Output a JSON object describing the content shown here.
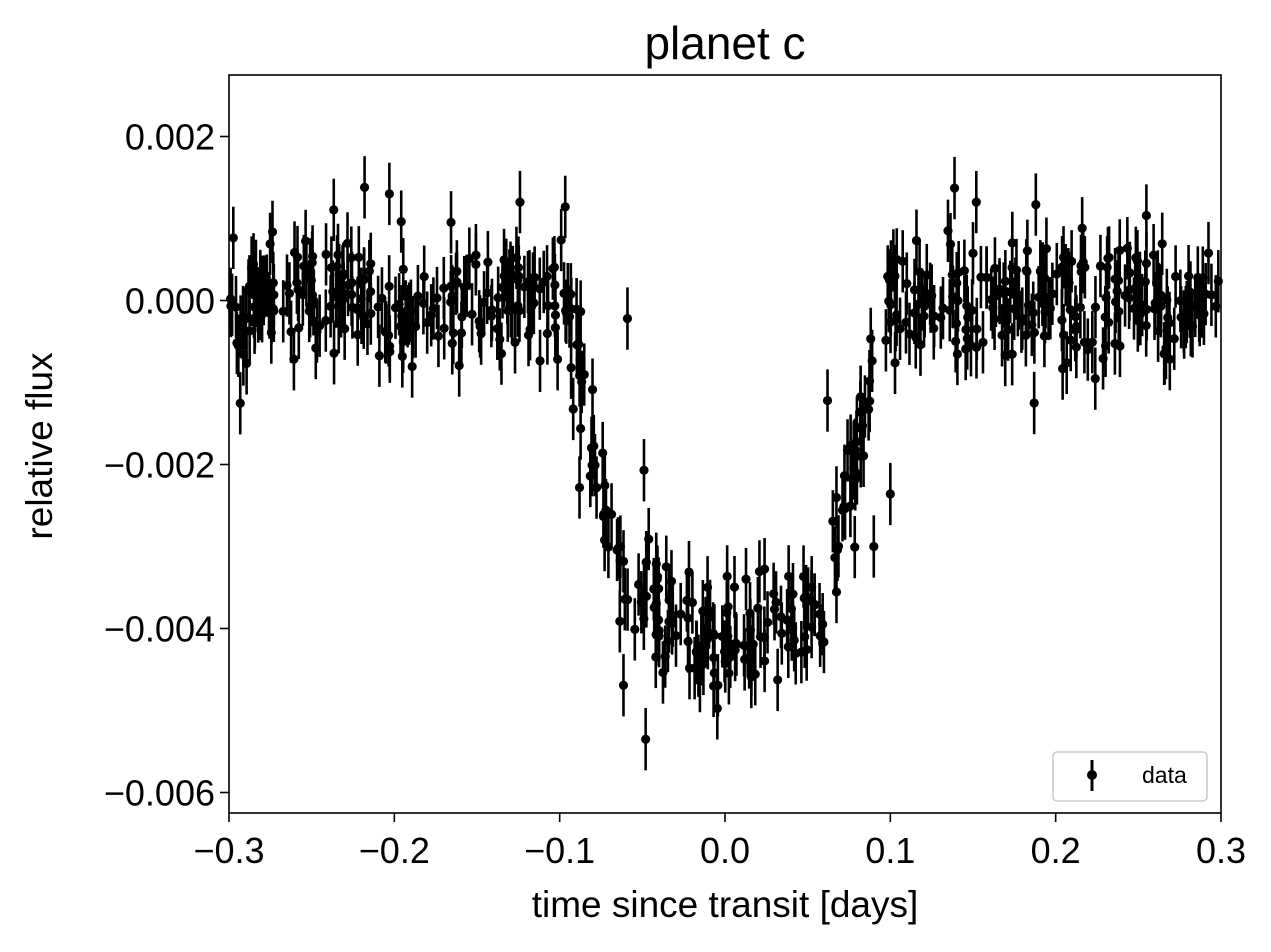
{
  "chart_data": {
    "type": "scatter",
    "title": "planet c",
    "xlabel": "time since transit [days]",
    "ylabel": "relative flux",
    "xlim": [
      -0.3,
      0.3
    ],
    "ylim": [
      -0.00625,
      0.00275
    ],
    "x_ticks": [
      -0.3,
      -0.2,
      -0.1,
      0.0,
      0.1,
      0.2,
      0.3
    ],
    "x_tick_labels": [
      "−0.3",
      "−0.2",
      "−0.1",
      "0.0",
      "0.1",
      "0.2",
      "0.3"
    ],
    "y_ticks": [
      0.002,
      0.0,
      -0.002,
      -0.004,
      -0.006
    ],
    "y_tick_labels": [
      "0.002",
      "0.000",
      "−0.002",
      "−0.004",
      "−0.006"
    ],
    "grid": false,
    "legend": {
      "placement": "lower-right",
      "entries": [
        "data"
      ]
    },
    "marker_color": "#000000",
    "model": {
      "baseline": 0.0,
      "depth": -0.0041,
      "ingress_start": 0.097,
      "flat_start": 0.06,
      "noise_sigma": 0.00048,
      "error_bar": 0.00038
    },
    "series": [
      {
        "name": "data",
        "n_points": 650,
        "highlighted_points": [
          [
            -0.218,
            0.00138
          ],
          [
            -0.203,
            0.0013
          ],
          [
            -0.124,
            0.0012
          ],
          [
            -0.049,
            -0.00207
          ],
          [
            -0.048,
            -0.00535
          ],
          [
            -0.088,
            -0.00228
          ],
          [
            0.062,
            -0.00122
          ],
          [
            0.076,
            -0.00177
          ],
          [
            0.1,
            -0.00236
          ],
          [
            0.09,
            -0.003
          ],
          [
            0.152,
            0.0012
          ],
          [
            0.188,
            0.00117
          ],
          [
            0.187,
            -0.00125
          ],
          [
            -0.059,
            -0.00022
          ]
        ]
      }
    ]
  }
}
